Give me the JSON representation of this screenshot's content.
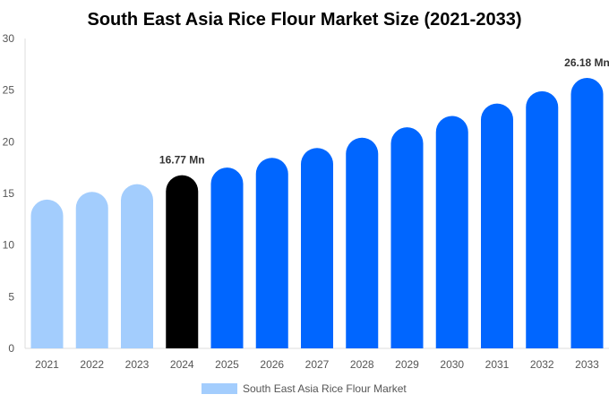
{
  "chart_data": {
    "type": "bar",
    "title": "South East Asia Rice Flour Market Size (2021-2033)",
    "xlabel": "",
    "ylabel": "",
    "ylim": [
      0,
      30
    ],
    "yticks": [
      0,
      5,
      10,
      15,
      20,
      25,
      30
    ],
    "grid": false,
    "legend_position": "bottom",
    "categories": [
      "2021",
      "2022",
      "2023",
      "2024",
      "2025",
      "2026",
      "2027",
      "2028",
      "2029",
      "2030",
      "2031",
      "2032",
      "2033"
    ],
    "series": [
      {
        "name": "South East Asia Rice Flour Market",
        "values": [
          14.4,
          15.15,
          15.9,
          16.77,
          17.5,
          18.45,
          19.4,
          20.4,
          21.4,
          22.5,
          23.7,
          24.9,
          26.18
        ]
      }
    ],
    "bar_colors": [
      "#a3cdfd",
      "#a3cdfd",
      "#a3cdfd",
      "#000000",
      "#0066ff",
      "#0066ff",
      "#0066ff",
      "#0066ff",
      "#0066ff",
      "#0066ff",
      "#0066ff",
      "#0066ff",
      "#0066ff"
    ],
    "data_labels": [
      {
        "category": "2024",
        "text": "16.77 Mn"
      },
      {
        "category": "2033",
        "text": "26.18 Mn"
      }
    ],
    "legend_color": "#a3cdfd"
  }
}
